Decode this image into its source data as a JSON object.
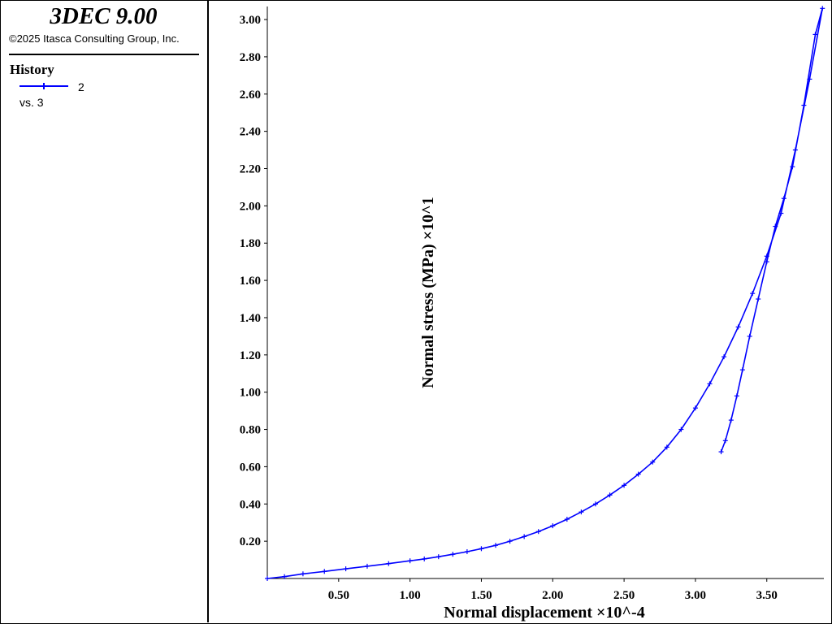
{
  "app": {
    "title": "3DEC 9.00",
    "copyright": "©2025 Itasca Consulting Group, Inc."
  },
  "legend": {
    "heading": "History",
    "entries": [
      {
        "id": "2",
        "vs": "vs. 3",
        "color": "#0000ff"
      }
    ]
  },
  "chart_data": {
    "type": "line",
    "xlabel": "Normal displacement ×10^-4",
    "ylabel": "Normal stress (MPa) ×10^1",
    "xlim": [
      0,
      3.9
    ],
    "ylim": [
      0,
      3.07
    ],
    "x_ticks": [
      "0.50",
      "1.00",
      "1.50",
      "2.00",
      "2.50",
      "3.00",
      "3.50"
    ],
    "y_ticks": [
      "0.20",
      "0.40",
      "0.60",
      "0.80",
      "1.00",
      "1.20",
      "1.40",
      "1.60",
      "1.80",
      "2.00",
      "2.20",
      "2.40",
      "2.60",
      "2.80",
      "3.00"
    ],
    "grid": false,
    "series": [
      {
        "name": "2",
        "color": "#0000ff",
        "marker": "+",
        "points": [
          [
            0.0,
            0.0
          ],
          [
            0.12,
            0.01
          ],
          [
            0.25,
            0.025
          ],
          [
            0.4,
            0.038
          ],
          [
            0.55,
            0.052
          ],
          [
            0.7,
            0.066
          ],
          [
            0.85,
            0.08
          ],
          [
            1.0,
            0.095
          ],
          [
            1.1,
            0.105
          ],
          [
            1.2,
            0.117
          ],
          [
            1.3,
            0.13
          ],
          [
            1.4,
            0.144
          ],
          [
            1.5,
            0.16
          ],
          [
            1.6,
            0.178
          ],
          [
            1.7,
            0.2
          ],
          [
            1.8,
            0.225
          ],
          [
            1.9,
            0.252
          ],
          [
            2.0,
            0.283
          ],
          [
            2.1,
            0.318
          ],
          [
            2.2,
            0.357
          ],
          [
            2.3,
            0.4
          ],
          [
            2.4,
            0.448
          ],
          [
            2.5,
            0.5
          ],
          [
            2.6,
            0.56
          ],
          [
            2.7,
            0.625
          ],
          [
            2.8,
            0.705
          ],
          [
            2.9,
            0.8
          ],
          [
            3.0,
            0.915
          ],
          [
            3.1,
            1.045
          ],
          [
            3.2,
            1.19
          ],
          [
            3.3,
            1.35
          ],
          [
            3.4,
            1.53
          ],
          [
            3.5,
            1.73
          ],
          [
            3.6,
            1.96
          ],
          [
            3.7,
            2.3
          ],
          [
            3.8,
            2.68
          ],
          [
            3.89,
            3.06
          ],
          [
            3.84,
            2.92
          ],
          [
            3.76,
            2.54
          ],
          [
            3.68,
            2.21
          ],
          [
            3.62,
            2.04
          ],
          [
            3.56,
            1.89
          ],
          [
            3.5,
            1.7
          ],
          [
            3.44,
            1.5
          ],
          [
            3.38,
            1.3
          ],
          [
            3.33,
            1.12
          ],
          [
            3.29,
            0.98
          ],
          [
            3.25,
            0.85
          ],
          [
            3.21,
            0.74
          ],
          [
            3.18,
            0.68
          ]
        ]
      }
    ]
  }
}
